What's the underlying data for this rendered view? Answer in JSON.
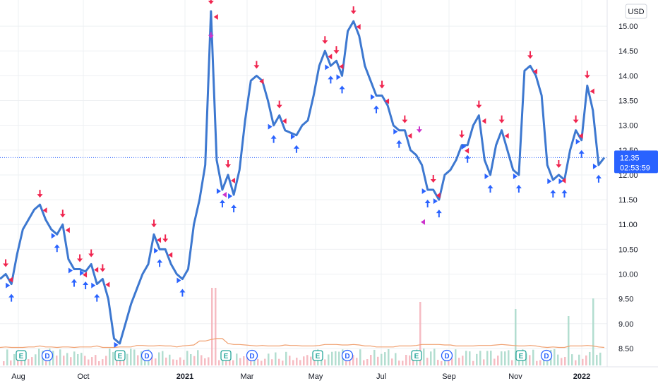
{
  "chart_data": {
    "type": "line",
    "currency": "USD",
    "last_price": "12.35",
    "countdown": "02:53:59",
    "ylim": [
      8.3,
      15.3
    ],
    "y_ticks": [
      "15.00",
      "14.50",
      "14.00",
      "13.50",
      "13.00",
      "12.50",
      "12.00",
      "11.50",
      "11.00",
      "10.50",
      "10.00",
      "9.50",
      "9.00",
      "8.50"
    ],
    "x_ticks": [
      "Aug",
      "Oct",
      "2021",
      "Mar",
      "May",
      "Jul",
      "Sep",
      "Nov",
      "2022"
    ],
    "series": [
      {
        "values": [
          9.9,
          10.0,
          9.8,
          10.4,
          10.9,
          11.1,
          11.3,
          11.4,
          11.1,
          10.9,
          10.8,
          11.0,
          10.3,
          10.1,
          10.1,
          10.05,
          10.2,
          9.8,
          9.9,
          9.5,
          8.7,
          8.6,
          9.0,
          9.4,
          9.7,
          10.0,
          10.2,
          10.8,
          10.5,
          10.5,
          10.2,
          10.0,
          9.9,
          10.1,
          11.0,
          11.5,
          12.2,
          15.3,
          12.3,
          11.7,
          12.0,
          11.6,
          12.1,
          13.1,
          13.9,
          14.0,
          13.9,
          13.5,
          13.0,
          13.2,
          12.9,
          12.85,
          12.8,
          13.0,
          13.1,
          13.6,
          14.2,
          14.5,
          14.2,
          14.3,
          14.0,
          14.9,
          15.1,
          14.8,
          14.2,
          13.9,
          13.6,
          13.6,
          13.4,
          13.0,
          12.9,
          12.9,
          12.5,
          12.4,
          12.2,
          11.7,
          11.7,
          11.5,
          12.0,
          12.1,
          12.3,
          12.6,
          12.6,
          13.0,
          13.2,
          12.3,
          12.0,
          12.6,
          12.9,
          12.5,
          12.1,
          12.0,
          14.1,
          14.2,
          14.0,
          13.6,
          12.2,
          11.9,
          12.0,
          11.9,
          12.5,
          12.9,
          12.7,
          13.8,
          13.3,
          12.2,
          12.35
        ]
      }
    ],
    "volume_avg": [
      8.52,
      8.53,
      8.52,
      8.52,
      8.52,
      8.53,
      8.53,
      8.55,
      8.53,
      8.53,
      8.52,
      8.53,
      8.53,
      8.52,
      8.53,
      8.53,
      8.53,
      8.55,
      8.52,
      8.52,
      8.52,
      8.53,
      8.53,
      8.53,
      8.56,
      8.56,
      8.55,
      8.55,
      8.56,
      8.55,
      8.55,
      8.53,
      8.55,
      8.56,
      8.57,
      8.65,
      8.65,
      8.68,
      8.7,
      8.7,
      8.6,
      8.58,
      8.58,
      8.57,
      8.56,
      8.55,
      8.56,
      8.55,
      8.55,
      8.55,
      8.57,
      8.56,
      8.56,
      8.55,
      8.55,
      8.55,
      8.56,
      8.58,
      8.58,
      8.58,
      8.57,
      8.57,
      8.58,
      8.57,
      8.55,
      8.55,
      8.53,
      8.53,
      8.53,
      8.53,
      8.55,
      8.55,
      8.55,
      8.56,
      8.58,
      8.58,
      8.58,
      8.58,
      8.57,
      8.57,
      8.55,
      8.55,
      8.55,
      8.55,
      8.56,
      8.56,
      8.56,
      8.57,
      8.58,
      8.57,
      8.56,
      8.55,
      8.55,
      8.56,
      8.55,
      8.53,
      8.52,
      8.53,
      8.52,
      8.52,
      8.55,
      8.55,
      8.55,
      8.56,
      8.55,
      8.53,
      8.52
    ],
    "events": [
      {
        "kind": "earnings",
        "label": "E"
      },
      {
        "kind": "dividend",
        "label": "D"
      },
      {
        "kind": "earnings",
        "label": "E"
      },
      {
        "kind": "dividend",
        "label": "D"
      },
      {
        "kind": "earnings",
        "label": "E"
      },
      {
        "kind": "dividend",
        "label": "D"
      },
      {
        "kind": "earnings",
        "label": "E"
      },
      {
        "kind": "dividend",
        "label": "D"
      },
      {
        "kind": "earnings",
        "label": "E"
      },
      {
        "kind": "dividend",
        "label": "D"
      },
      {
        "kind": "earnings",
        "label": "E"
      },
      {
        "kind": "dividend",
        "label": "D"
      },
      {
        "kind": "earnings",
        "label": "E"
      },
      {
        "kind": "dividend",
        "label": "D"
      }
    ],
    "grid": true
  },
  "colors": {
    "line": "#3d78d0",
    "buy": "#2962ff",
    "sell": "#f0254f",
    "special": "#cc33cc",
    "volume_avg": "#f0a070",
    "volume_up": "#a6d8c8",
    "volume_down": "#f4b0b8",
    "grid": "#eef0f3",
    "price_label_bg": "#2962ff",
    "earnings": "#26a69a",
    "dividend": "#2962ff"
  }
}
